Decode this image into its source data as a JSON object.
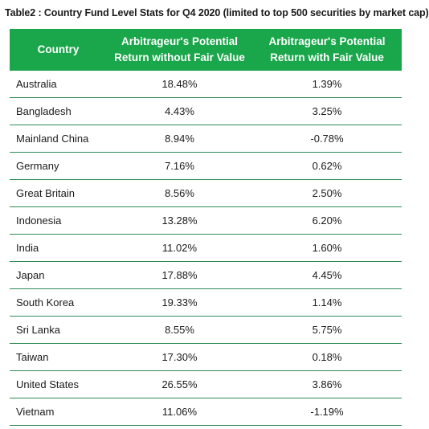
{
  "caption": "Table2 : Country Fund Level Stats for Q4 2020 (limited to top 500 securities by market cap)",
  "colors": {
    "header_bg": "#1aa64a",
    "header_text": "#ffffff",
    "row_divider": "#2e8b57"
  },
  "table": {
    "headers": {
      "country": "Country",
      "without_fv_line1": "Arbitrageur's Potential",
      "without_fv_line2": "Return without Fair Value",
      "with_fv_line1": "Arbitrageur's Potential",
      "with_fv_line2": "Return with Fair Value"
    },
    "rows": [
      {
        "country": "Australia",
        "without_fv": "18.48%",
        "with_fv": "1.39%"
      },
      {
        "country": "Bangladesh",
        "without_fv": "4.43%",
        "with_fv": "3.25%"
      },
      {
        "country": "Mainland China",
        "without_fv": "8.94%",
        "with_fv": "-0.78%"
      },
      {
        "country": "Germany",
        "without_fv": "7.16%",
        "with_fv": "0.62%"
      },
      {
        "country": "Great Britain",
        "without_fv": "8.56%",
        "with_fv": "2.50%"
      },
      {
        "country": "Indonesia",
        "without_fv": "13.28%",
        "with_fv": "6.20%"
      },
      {
        "country": "India",
        "without_fv": "11.02%",
        "with_fv": "1.60%"
      },
      {
        "country": "Japan",
        "without_fv": "17.88%",
        "with_fv": "4.45%"
      },
      {
        "country": "South Korea",
        "without_fv": "19.33%",
        "with_fv": "1.14%"
      },
      {
        "country": "Sri Lanka",
        "without_fv": "8.55%",
        "with_fv": "5.75%"
      },
      {
        "country": "Taiwan",
        "without_fv": "17.30%",
        "with_fv": "0.18%"
      },
      {
        "country": "United States",
        "without_fv": "26.55%",
        "with_fv": "3.86%"
      },
      {
        "country": "Vietnam",
        "without_fv": "11.06%",
        "with_fv": "-1.19%"
      }
    ]
  }
}
